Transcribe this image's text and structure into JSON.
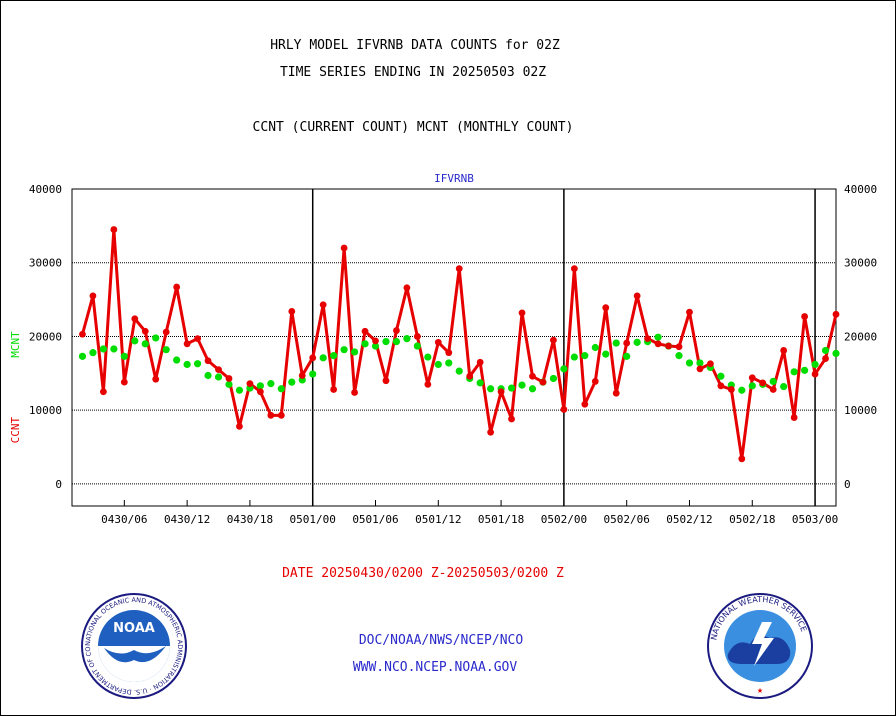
{
  "header": {
    "title_line1": "HRLY MODEL IFVRNB DATA COUNTS for 02Z",
    "title_line2": "TIME SERIES ENDING IN 20250503 02Z",
    "subtitle": "CCNT (CURRENT COUNT) MCNT (MONTHLY COUNT)"
  },
  "footer": {
    "date_range": "DATE 20250430/0200 Z-20250503/0200 Z",
    "link_org": "DOC/NOAA/NWS/NCEP/NCO",
    "link_url": "WWW.NCO.NCEP.NOAA.GOV"
  },
  "logos": {
    "noaa_text": "NOAA",
    "noaa_ring": "NATIONAL OCEANIC AND ATMOSPHERIC ADMINISTRATION · U.S. DEPARTMENT OF COMMERCE",
    "nws_ring": "NATIONAL WEATHER SERVICE"
  },
  "colors": {
    "ccnt": "#e60000",
    "mcnt": "#00dd00",
    "label_blue": "#2a2acc"
  },
  "chart_data": {
    "type": "line",
    "title": "IFVRNB",
    "xlabel": "",
    "ylabel_left_1": "CCNT",
    "ylabel_left_2": "MCNT",
    "ylim": [
      -3000,
      40000
    ],
    "y_ticks": [
      0,
      10000,
      20000,
      30000,
      40000
    ],
    "x_tick_labels": [
      "0430/06",
      "0430/12",
      "0430/18",
      "0501/00",
      "0501/06",
      "0501/12",
      "0501/18",
      "0502/00",
      "0502/06",
      "0502/12",
      "0502/18",
      "0503/00"
    ],
    "x_tick_hours": [
      4,
      10,
      16,
      22,
      28,
      34,
      40,
      46,
      52,
      58,
      64,
      70
    ],
    "day_boundaries_hours": [
      22,
      46,
      70
    ],
    "x_range_hours": [
      -1,
      72
    ],
    "grid": true,
    "series": [
      {
        "name": "CCNT",
        "color": "#e60000",
        "values": [
          20300,
          25500,
          12500,
          34500,
          13800,
          22400,
          20700,
          14200,
          20600,
          26700,
          19000,
          19700,
          16700,
          15500,
          14300,
          7800,
          13600,
          12500,
          9300,
          9300,
          23400,
          14700,
          17100,
          24300,
          12800,
          32000,
          12400,
          20700,
          19400,
          14000,
          20800,
          26600,
          20000,
          13500,
          19200,
          17800,
          29200,
          14600,
          16500,
          7000,
          12500,
          8800,
          23200,
          14600,
          13800,
          19500,
          10100,
          29200,
          10800,
          13900,
          23900,
          12300,
          19100,
          25500,
          19700,
          19000,
          18700,
          18600,
          23300,
          15600,
          16300,
          13300,
          12800,
          3400,
          14400,
          13700,
          12800,
          18100,
          9000,
          22700,
          14900,
          17000,
          23000
        ]
      },
      {
        "name": "MCNT",
        "color": "#00dd00",
        "values": [
          17300,
          17800,
          18300,
          18300,
          17300,
          19400,
          19000,
          19800,
          18200,
          16800,
          16200,
          16300,
          14700,
          14500,
          13500,
          12700,
          13000,
          13300,
          13600,
          12900,
          13800,
          14100,
          14900,
          17100,
          17400,
          18200,
          17900,
          19000,
          18700,
          19300,
          19300,
          19700,
          18700,
          17200,
          16200,
          16400,
          15300,
          14300,
          13700,
          12900,
          12900,
          13000,
          13400,
          12900,
          13800,
          14300,
          15600,
          17200,
          17400,
          18500,
          17600,
          19100,
          17300,
          19200,
          19300,
          19900,
          18700,
          17400,
          16400,
          16400,
          15800,
          14600,
          13400,
          12700,
          13300,
          13500,
          13900,
          13200,
          15200,
          15400,
          16200,
          18100,
          17700
        ]
      }
    ]
  }
}
